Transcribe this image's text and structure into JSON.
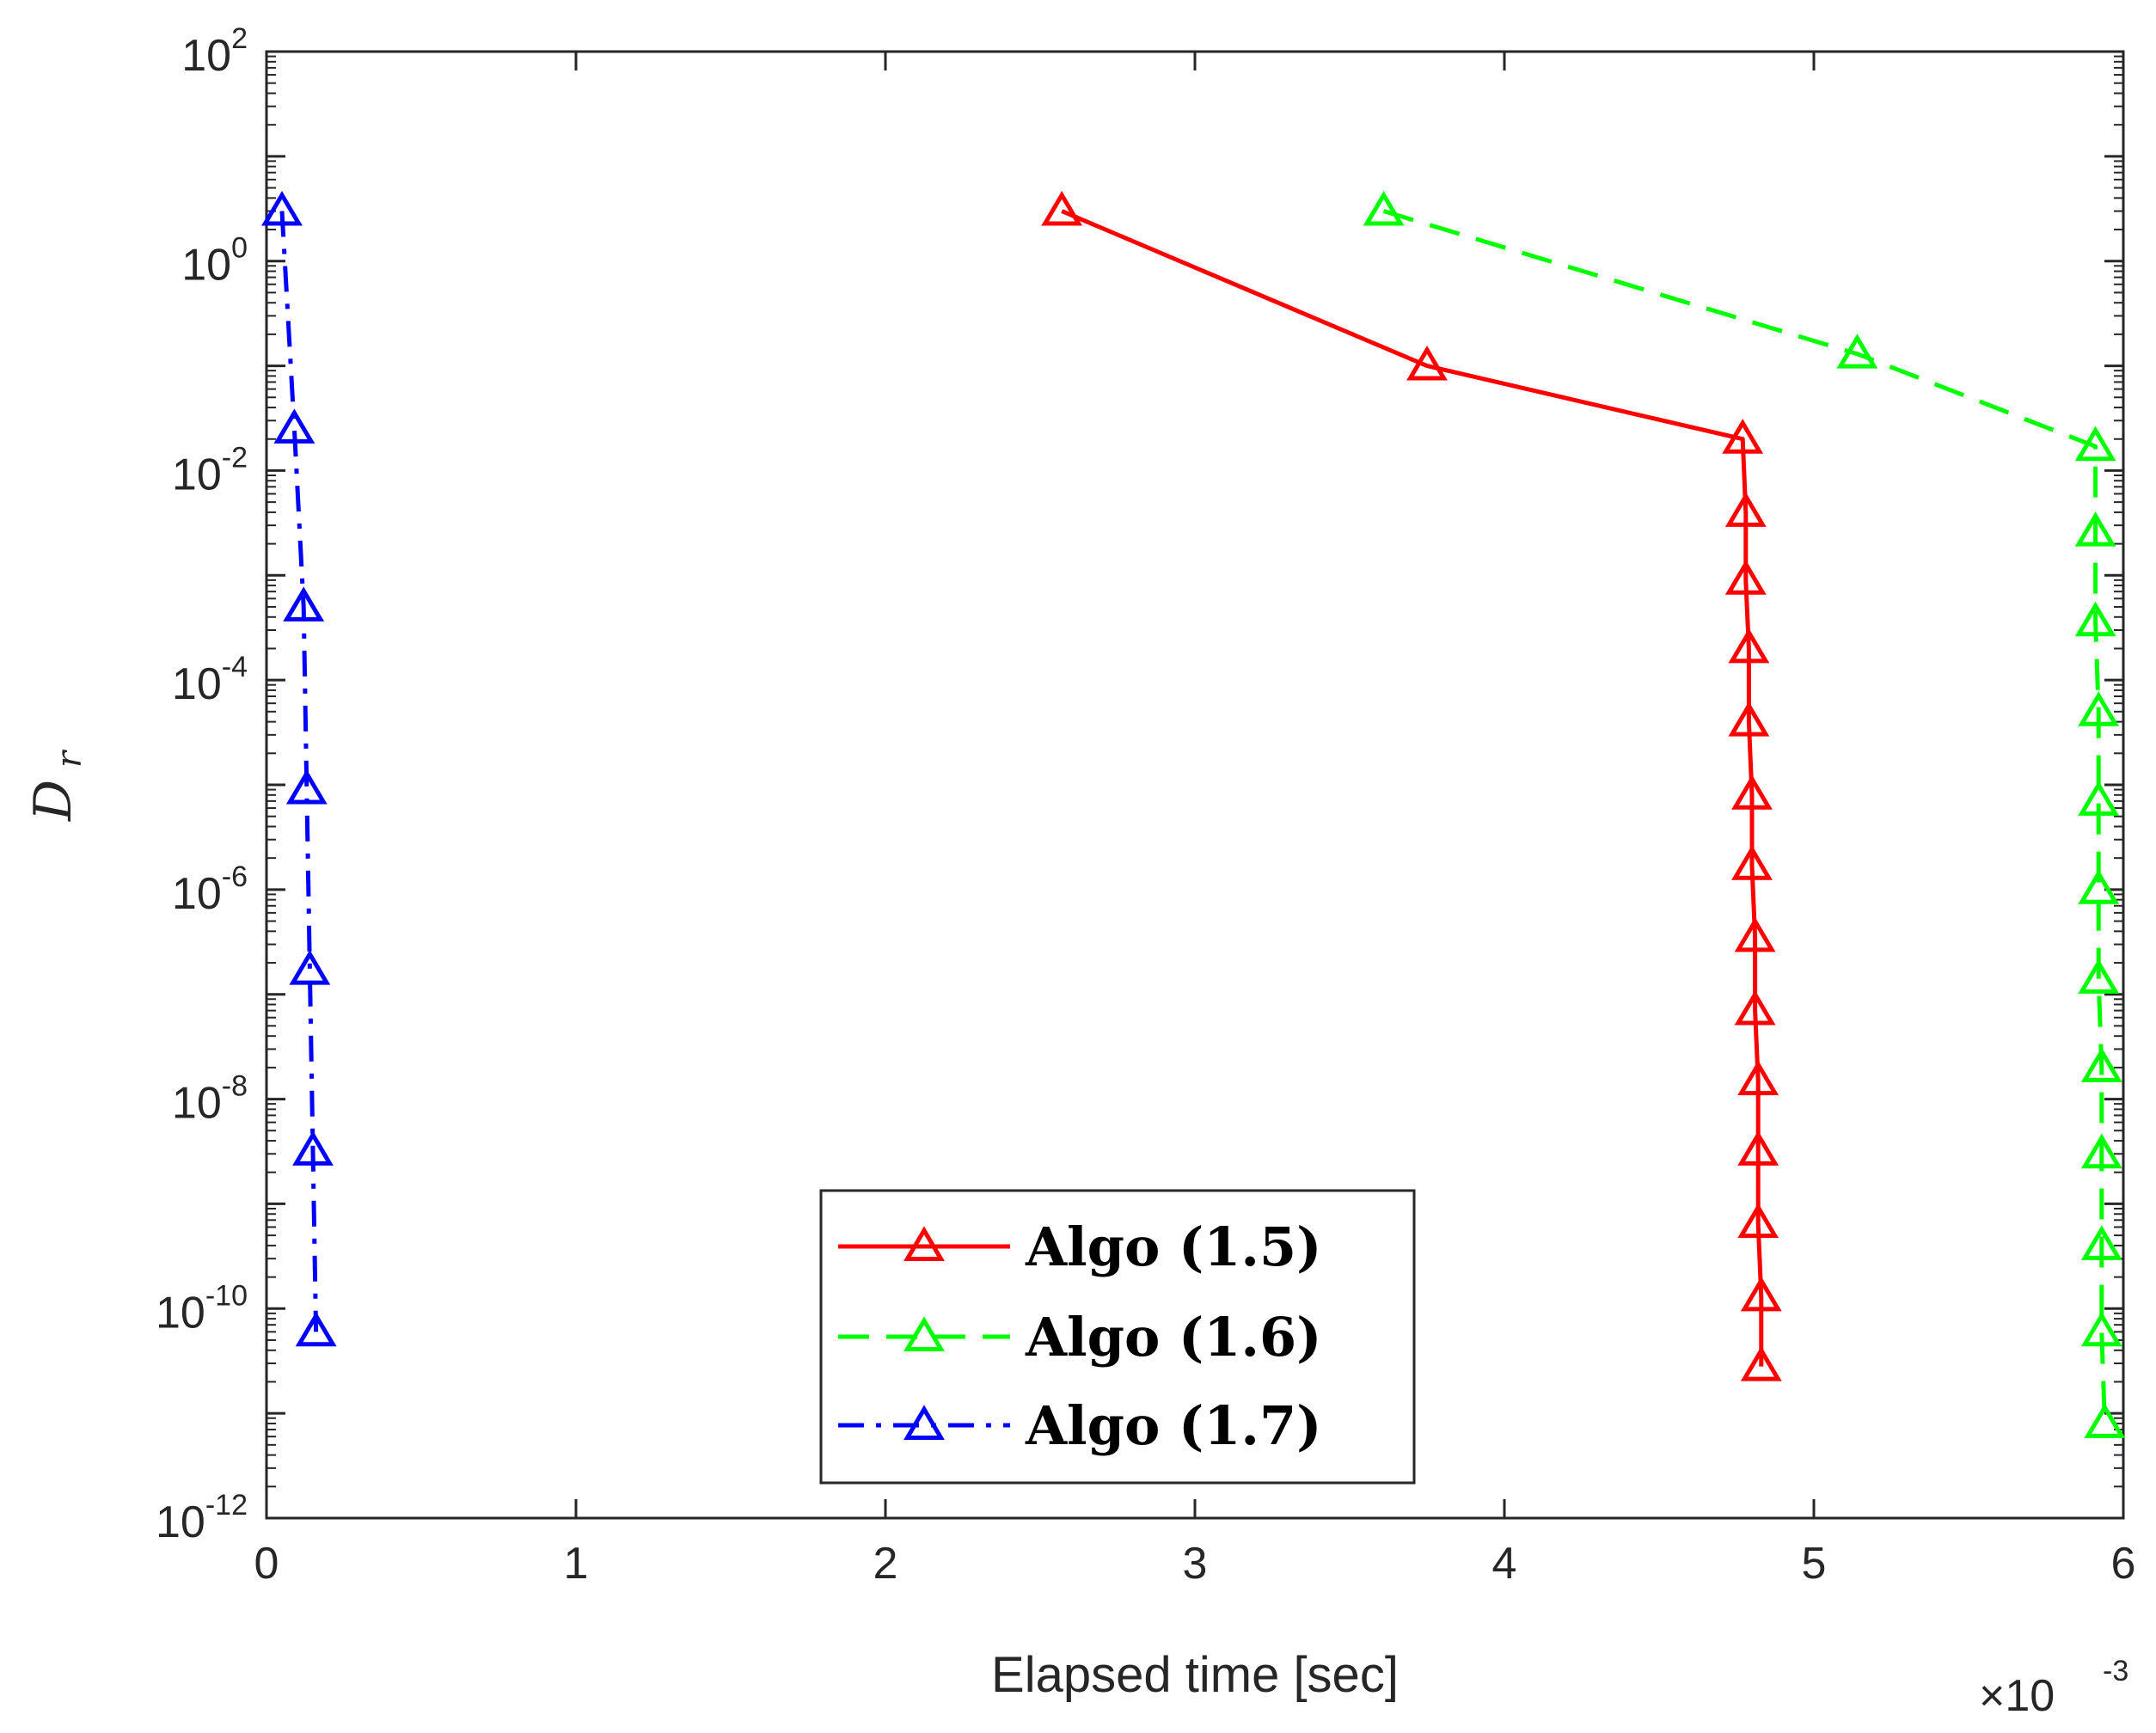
{
  "chart_data": {
    "type": "line",
    "title": "",
    "xlabel": "Elapsed time [sec]",
    "ylabel": "D",
    "ylabel_subscript": "r",
    "x_multiplier": {
      "base": "×10",
      "exponent": "-3"
    },
    "xlim": [
      0,
      6
    ],
    "ylim_log10": [
      -12,
      2
    ],
    "yscale": "log",
    "x_ticks": [
      0,
      1,
      2,
      3,
      4,
      5,
      6
    ],
    "x_tick_labels": [
      "0",
      "1",
      "2",
      "3",
      "4",
      "5",
      "6"
    ],
    "y_tick_exponents": [
      2,
      0,
      -2,
      -4,
      -6,
      -8,
      -10,
      -12
    ],
    "y_tick_labels": [
      {
        "base": "10",
        "exp": "2"
      },
      {
        "base": "10",
        "exp": "0"
      },
      {
        "base": "10",
        "exp": "-2"
      },
      {
        "base": "10",
        "exp": "-4"
      },
      {
        "base": "10",
        "exp": "-6"
      },
      {
        "base": "10",
        "exp": "-8"
      },
      {
        "base": "10",
        "exp": "-10"
      },
      {
        "base": "10",
        "exp": "-12"
      }
    ],
    "grid": false,
    "legend_position": "bottom-center",
    "series": [
      {
        "name": "Algo (1.5)",
        "color": "#ff0000",
        "dash": "solid",
        "marker": "triangle",
        "x": [
          2.57,
          3.75,
          4.77,
          4.78,
          4.78,
          4.79,
          4.79,
          4.8,
          4.8,
          4.81,
          4.81,
          4.82,
          4.82,
          4.82,
          4.83,
          4.83
        ],
        "y": [
          3.0,
          0.1,
          0.02,
          0.004,
          0.0009,
          0.0002,
          4e-05,
          8e-06,
          1.7e-06,
          3.5e-07,
          7e-08,
          1.5e-08,
          3.2e-09,
          6.5e-10,
          1.3e-10,
          2.8e-11
        ]
      },
      {
        "name": "Algo (1.6)",
        "color": "#00ff00",
        "dash": "dashed",
        "marker": "triangle",
        "x": [
          3.61,
          5.14,
          5.91,
          5.91,
          5.91,
          5.92,
          5.92,
          5.92,
          5.92,
          5.93,
          5.93,
          5.93,
          5.93,
          5.94
        ],
        "y": [
          3.0,
          0.13,
          0.017,
          0.0026,
          0.00036,
          5e-05,
          7e-06,
          1e-06,
          1.4e-07,
          2e-08,
          3e-09,
          4e-10,
          6e-11,
          8e-12
        ]
      },
      {
        "name": "Algo (1.7)",
        "color": "#0000ff",
        "dash": "dashdot",
        "marker": "triangle",
        "x": [
          0.05,
          0.09,
          0.12,
          0.13,
          0.14,
          0.15,
          0.16
        ],
        "y": [
          3.0,
          0.025,
          0.0005,
          9e-06,
          1.7e-07,
          3.2e-09,
          6e-11
        ]
      }
    ]
  }
}
